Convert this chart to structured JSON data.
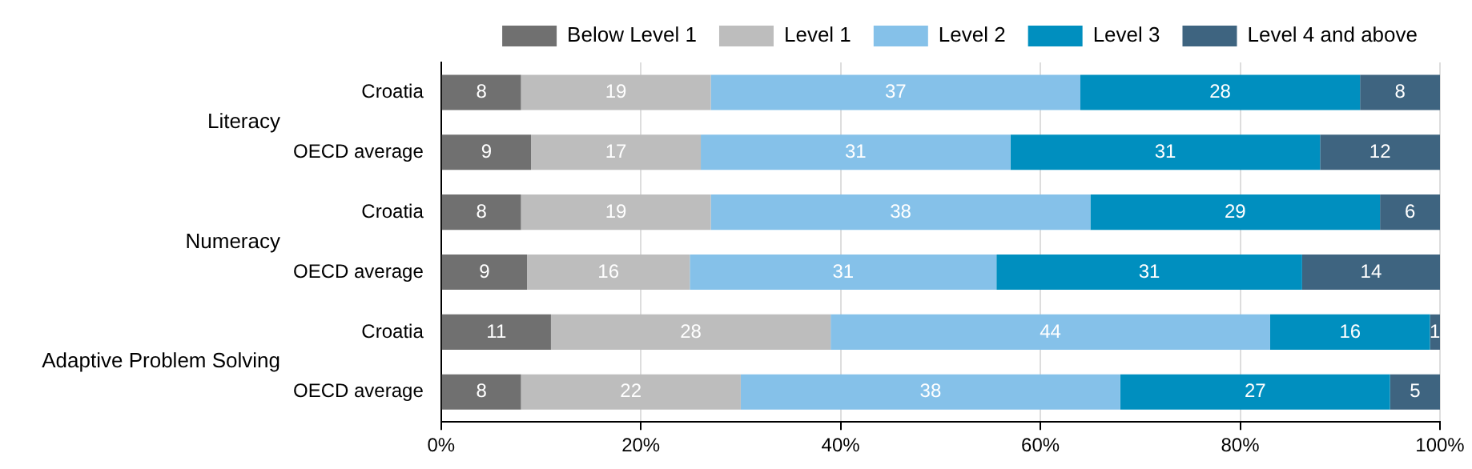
{
  "chart_data": {
    "type": "bar",
    "orientation": "horizontal",
    "stacked": true,
    "categories": [
      "Croatia",
      "OECD average",
      "Croatia",
      "OECD average",
      "Croatia",
      "OECD average"
    ],
    "annotations": [
      "Literacy",
      "Numeracy",
      "Adaptive Problem Solving"
    ],
    "series": [
      {
        "name": "Below Level 1",
        "color": "#707070",
        "values": [
          8,
          9,
          8,
          8.6,
          11,
          8
        ],
        "value_labels": [
          "8",
          "9",
          "8",
          "9",
          "11",
          "8"
        ]
      },
      {
        "name": "Level 1",
        "color": "#bdbdbd",
        "values": [
          19,
          17,
          19,
          16.3,
          28,
          22
        ],
        "value_labels": [
          "19",
          "17",
          "19",
          "16",
          "28",
          "22"
        ]
      },
      {
        "name": "Level 2",
        "color": "#85c1e9",
        "values": [
          37,
          31,
          38,
          30.7,
          44,
          38
        ],
        "value_labels": [
          "37",
          "31",
          "38",
          "31",
          "44",
          "38"
        ]
      },
      {
        "name": "Level 3",
        "color": "#008fbf",
        "values": [
          28,
          31,
          29,
          30.6,
          16,
          27
        ],
        "value_labels": [
          "28",
          "31",
          "29",
          "31",
          "16",
          "27"
        ]
      },
      {
        "name": "Level 4 and above",
        "color": "#3e6480",
        "values": [
          8,
          12,
          6,
          13.8,
          1,
          5
        ],
        "value_labels": [
          "8",
          "12",
          "6",
          "14",
          "1",
          "5"
        ]
      }
    ],
    "xlim": [
      0,
      100
    ],
    "xticks": [
      {
        "value": 0,
        "label": "0%"
      },
      {
        "value": 20,
        "label": "20%"
      },
      {
        "value": 40,
        "label": "40%"
      },
      {
        "value": 60,
        "label": "60%"
      },
      {
        "value": 80,
        "label": "80%"
      },
      {
        "value": 100,
        "label": "100%"
      }
    ],
    "grid": "x",
    "legend": "top"
  }
}
